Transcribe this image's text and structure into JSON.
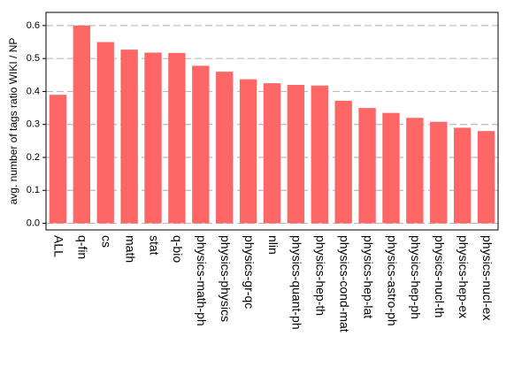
{
  "chart_data": {
    "type": "bar",
    "ylabel": "avg. number of tags ratio WIKI / NP",
    "categories": [
      "ALL",
      "q-fin",
      "cs",
      "math",
      "stat",
      "q-bio",
      "physics-math-ph",
      "physics-physics",
      "physics-gr-qc",
      "nlin",
      "physics-quant-ph",
      "physics-hep-th",
      "physics-cond-mat",
      "physics-hep-lat",
      "physics-astro-ph",
      "physics-hep-ph",
      "physics-nucl-th",
      "physics-hep-ex",
      "physics-nucl-ex"
    ],
    "values": [
      0.39,
      0.6,
      0.55,
      0.527,
      0.518,
      0.517,
      0.478,
      0.46,
      0.437,
      0.425,
      0.42,
      0.418,
      0.372,
      0.35,
      0.335,
      0.32,
      0.308,
      0.29,
      0.28
    ],
    "color": "#ff6666",
    "ylim": [
      -0.02,
      0.64
    ],
    "yticks": [
      {
        "value": 0,
        "label": "0.0"
      },
      {
        "value": 0.1,
        "label": "0.1"
      },
      {
        "value": 0.2,
        "label": "0.2"
      },
      {
        "value": 0.3,
        "label": "0.3"
      },
      {
        "value": 0.4,
        "label": "0.4"
      },
      {
        "value": 0.5,
        "label": "0.5"
      },
      {
        "value": 0.6,
        "label": "0.6"
      }
    ],
    "grid": true
  }
}
